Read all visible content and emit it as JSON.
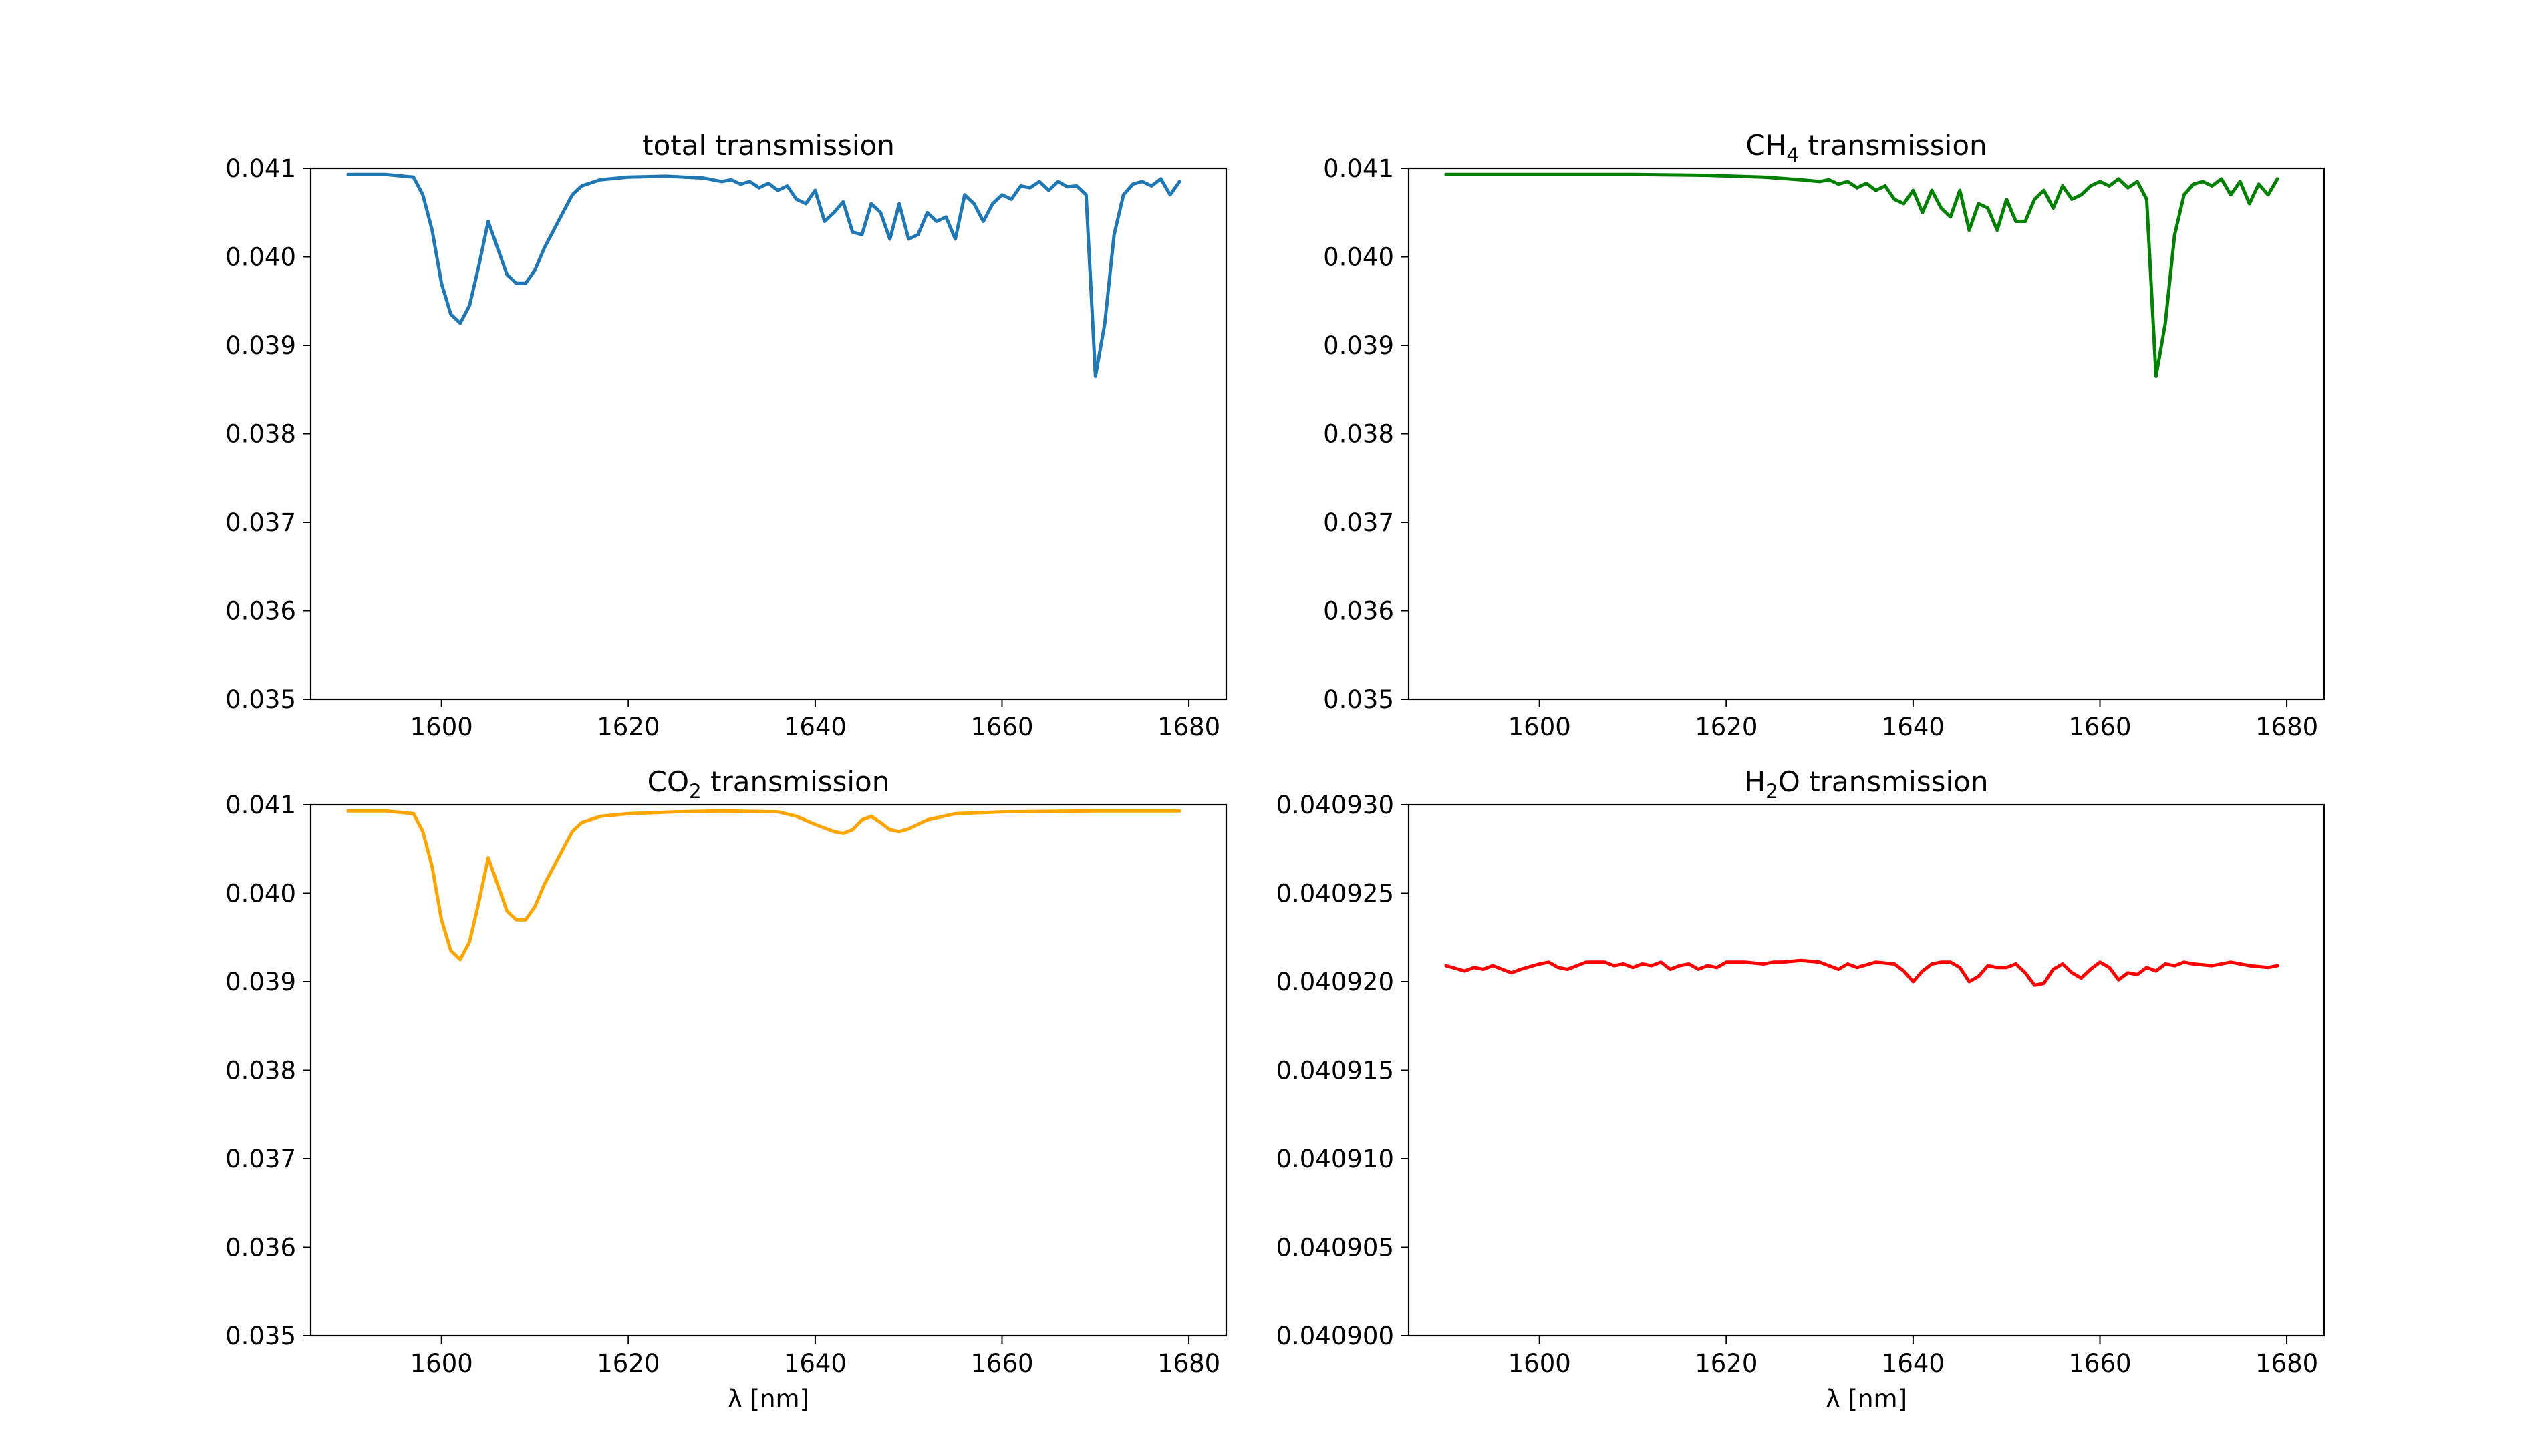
{
  "chart_data": [
    {
      "type": "line",
      "title_parts": [
        {
          "text": "total transmission",
          "sub": false
        }
      ],
      "xlabel": "",
      "xlim": [
        1586,
        1684
      ],
      "ylim": [
        0.035,
        0.041
      ],
      "xticks": [
        1600,
        1620,
        1640,
        1660,
        1680
      ],
      "xtick_labels": [
        "1600",
        "1620",
        "1640",
        "1660",
        "1680"
      ],
      "yticks": [
        0.035,
        0.036,
        0.037,
        0.038,
        0.039,
        0.04,
        0.041
      ],
      "ytick_labels": [
        "0.035",
        "0.036",
        "0.037",
        "0.038",
        "0.039",
        "0.040",
        "0.041"
      ],
      "grid": false,
      "color": "#1f77b4",
      "series": [
        {
          "x": [
            1590,
            1594,
            1597,
            1598,
            1599,
            1600,
            1601,
            1602,
            1603,
            1604,
            1605,
            1606,
            1607,
            1608,
            1609,
            1610,
            1611,
            1612,
            1613,
            1614,
            1615,
            1617,
            1620,
            1624,
            1628,
            1630,
            1631,
            1632,
            1633,
            1634,
            1635,
            1636,
            1637,
            1638,
            1639,
            1640,
            1641,
            1642,
            1643,
            1644,
            1645,
            1646,
            1647,
            1648,
            1649,
            1650,
            1651,
            1652,
            1653,
            1654,
            1655,
            1656,
            1657,
            1658,
            1659,
            1660,
            1661,
            1662,
            1663,
            1664,
            1665,
            1666,
            1667,
            1668,
            1669,
            1670,
            1671,
            1672,
            1673,
            1674,
            1675,
            1676,
            1677,
            1678,
            1679
          ],
          "y": [
            0.04093,
            0.04093,
            0.0409,
            0.0407,
            0.0403,
            0.0397,
            0.03935,
            0.03925,
            0.03945,
            0.0399,
            0.0404,
            0.0401,
            0.0398,
            0.0397,
            0.0397,
            0.03985,
            0.0401,
            0.0403,
            0.0405,
            0.0407,
            0.0408,
            0.04087,
            0.0409,
            0.04091,
            0.04089,
            0.04085,
            0.04087,
            0.04082,
            0.04085,
            0.04078,
            0.04083,
            0.04075,
            0.0408,
            0.04065,
            0.0406,
            0.04075,
            0.0404,
            0.0405,
            0.04062,
            0.04028,
            0.04025,
            0.0406,
            0.0405,
            0.0402,
            0.0406,
            0.0402,
            0.04025,
            0.0405,
            0.0404,
            0.04045,
            0.0402,
            0.0407,
            0.0406,
            0.0404,
            0.0406,
            0.0407,
            0.04065,
            0.0408,
            0.04078,
            0.04085,
            0.04075,
            0.04085,
            0.04079,
            0.0408,
            0.0407,
            0.03865,
            0.03925,
            0.04025,
            0.0407,
            0.04082,
            0.04085,
            0.0408,
            0.04088,
            0.0407,
            0.04085
          ]
        }
      ]
    },
    {
      "type": "line",
      "title_parts": [
        {
          "text": "CH",
          "sub": false
        },
        {
          "text": "4",
          "sub": true
        },
        {
          "text": " transmission",
          "sub": false
        }
      ],
      "xlabel": "",
      "xlim": [
        1586,
        1684
      ],
      "ylim": [
        0.035,
        0.041
      ],
      "xticks": [
        1600,
        1620,
        1640,
        1660,
        1680
      ],
      "xtick_labels": [
        "1600",
        "1620",
        "1640",
        "1660",
        "1680"
      ],
      "yticks": [
        0.035,
        0.036,
        0.037,
        0.038,
        0.039,
        0.04,
        0.041
      ],
      "ytick_labels": [
        "0.035",
        "0.036",
        "0.037",
        "0.038",
        "0.039",
        "0.040",
        "0.041"
      ],
      "grid": false,
      "color": "#008000",
      "series": [
        {
          "x": [
            1590,
            1600,
            1610,
            1618,
            1624,
            1628,
            1630,
            1631,
            1632,
            1633,
            1634,
            1635,
            1636,
            1637,
            1638,
            1639,
            1640,
            1641,
            1642,
            1643,
            1644,
            1645,
            1646,
            1647,
            1648,
            1649,
            1650,
            1651,
            1652,
            1653,
            1654,
            1655,
            1656,
            1657,
            1658,
            1659,
            1660,
            1661,
            1662,
            1663,
            1664,
            1665,
            1666,
            1667,
            1668,
            1669,
            1670,
            1671,
            1672,
            1673,
            1674,
            1675,
            1676,
            1677,
            1678,
            1679
          ],
          "y": [
            0.04093,
            0.04093,
            0.04093,
            0.04092,
            0.0409,
            0.04087,
            0.04085,
            0.04087,
            0.04082,
            0.04085,
            0.04078,
            0.04083,
            0.04075,
            0.0408,
            0.04065,
            0.0406,
            0.04075,
            0.0405,
            0.04075,
            0.04055,
            0.04045,
            0.04075,
            0.0403,
            0.0406,
            0.04055,
            0.0403,
            0.04065,
            0.0404,
            0.0404,
            0.04065,
            0.04075,
            0.04055,
            0.0408,
            0.04065,
            0.0407,
            0.0408,
            0.04085,
            0.0408,
            0.04088,
            0.04078,
            0.04085,
            0.04065,
            0.03865,
            0.03925,
            0.04025,
            0.0407,
            0.04082,
            0.04085,
            0.0408,
            0.04088,
            0.0407,
            0.04085,
            0.0406,
            0.04082,
            0.0407,
            0.04088
          ]
        }
      ]
    },
    {
      "type": "line",
      "title_parts": [
        {
          "text": "CO",
          "sub": false
        },
        {
          "text": "2",
          "sub": true
        },
        {
          "text": " transmission",
          "sub": false
        }
      ],
      "xlabel": "λ [nm]",
      "xlim": [
        1586,
        1684
      ],
      "ylim": [
        0.035,
        0.041
      ],
      "xticks": [
        1600,
        1620,
        1640,
        1660,
        1680
      ],
      "xtick_labels": [
        "1600",
        "1620",
        "1640",
        "1660",
        "1680"
      ],
      "yticks": [
        0.035,
        0.036,
        0.037,
        0.038,
        0.039,
        0.04,
        0.041
      ],
      "ytick_labels": [
        "0.035",
        "0.036",
        "0.037",
        "0.038",
        "0.039",
        "0.040",
        "0.041"
      ],
      "grid": false,
      "color": "#ffa500",
      "series": [
        {
          "x": [
            1590,
            1594,
            1597,
            1598,
            1599,
            1600,
            1601,
            1602,
            1603,
            1604,
            1605,
            1606,
            1607,
            1608,
            1609,
            1610,
            1611,
            1612,
            1613,
            1614,
            1615,
            1617,
            1620,
            1625,
            1630,
            1636,
            1638,
            1640,
            1642,
            1643,
            1644,
            1645,
            1646,
            1647,
            1648,
            1649,
            1650,
            1652,
            1655,
            1660,
            1670,
            1679
          ],
          "y": [
            0.04093,
            0.04093,
            0.0409,
            0.0407,
            0.0403,
            0.0397,
            0.03935,
            0.03925,
            0.03945,
            0.0399,
            0.0404,
            0.0401,
            0.0398,
            0.0397,
            0.0397,
            0.03985,
            0.0401,
            0.0403,
            0.0405,
            0.0407,
            0.0408,
            0.04087,
            0.0409,
            0.04092,
            0.04093,
            0.04092,
            0.04087,
            0.04078,
            0.0407,
            0.04068,
            0.04072,
            0.04083,
            0.04087,
            0.0408,
            0.04072,
            0.0407,
            0.04073,
            0.04083,
            0.0409,
            0.04092,
            0.04093,
            0.04093
          ]
        }
      ]
    },
    {
      "type": "line",
      "title_parts": [
        {
          "text": "H",
          "sub": false
        },
        {
          "text": "2",
          "sub": true
        },
        {
          "text": "O transmission",
          "sub": false
        }
      ],
      "xlabel": "λ [nm]",
      "xlim": [
        1586,
        1684
      ],
      "ylim": [
        0.0409,
        0.04093
      ],
      "xticks": [
        1600,
        1620,
        1640,
        1660,
        1680
      ],
      "xtick_labels": [
        "1600",
        "1620",
        "1640",
        "1660",
        "1680"
      ],
      "yticks": [
        0.0409,
        0.040905,
        0.04091,
        0.040915,
        0.04092,
        0.040925,
        0.04093
      ],
      "ytick_labels": [
        "0.040900",
        "0.040905",
        "0.040910",
        "0.040915",
        "0.040920",
        "0.040925",
        "0.040930"
      ],
      "grid": false,
      "color": "#ff0000",
      "series": [
        {
          "x": [
            1590,
            1592,
            1593,
            1594,
            1595,
            1596,
            1597,
            1598,
            1600,
            1601,
            1602,
            1603,
            1605,
            1607,
            1608,
            1609,
            1610,
            1611,
            1612,
            1613,
            1614,
            1615,
            1616,
            1617,
            1618,
            1619,
            1620,
            1622,
            1624,
            1625,
            1626,
            1628,
            1630,
            1632,
            1633,
            1634,
            1636,
            1638,
            1639,
            1640,
            1641,
            1642,
            1643,
            1644,
            1645,
            1646,
            1647,
            1648,
            1649,
            1650,
            1651,
            1652,
            1653,
            1654,
            1655,
            1656,
            1657,
            1658,
            1659,
            1660,
            1661,
            1662,
            1663,
            1664,
            1665,
            1666,
            1667,
            1668,
            1669,
            1670,
            1672,
            1674,
            1676,
            1678,
            1679
          ],
          "y": [
            0.0409209,
            0.0409206,
            0.0409208,
            0.0409207,
            0.0409209,
            0.0409207,
            0.0409205,
            0.0409207,
            0.040921,
            0.0409211,
            0.0409208,
            0.0409207,
            0.0409211,
            0.0409211,
            0.0409209,
            0.040921,
            0.0409208,
            0.040921,
            0.0409209,
            0.0409211,
            0.0409207,
            0.0409209,
            0.040921,
            0.0409207,
            0.0409209,
            0.0409208,
            0.0409211,
            0.0409211,
            0.040921,
            0.0409211,
            0.0409211,
            0.0409212,
            0.0409211,
            0.0409207,
            0.040921,
            0.0409208,
            0.0409211,
            0.040921,
            0.0409206,
            0.04092,
            0.0409206,
            0.040921,
            0.0409211,
            0.0409211,
            0.0409208,
            0.04092,
            0.0409203,
            0.0409209,
            0.0409208,
            0.0409208,
            0.040921,
            0.0409205,
            0.0409198,
            0.0409199,
            0.0409207,
            0.040921,
            0.0409205,
            0.0409202,
            0.0409207,
            0.0409211,
            0.0409208,
            0.0409201,
            0.0409205,
            0.0409204,
            0.0409208,
            0.0409206,
            0.040921,
            0.0409209,
            0.0409211,
            0.040921,
            0.0409209,
            0.0409211,
            0.0409209,
            0.0409208,
            0.0409209
          ]
        }
      ]
    }
  ]
}
